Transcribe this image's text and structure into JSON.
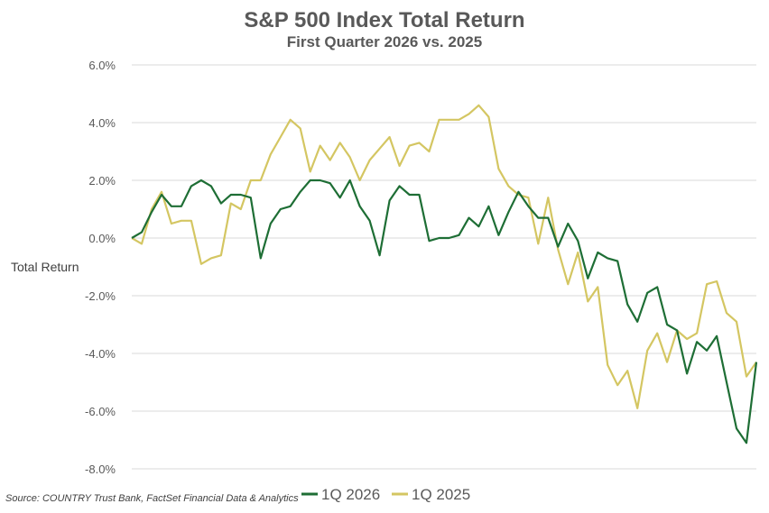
{
  "chart_data": {
    "type": "line",
    "title": "S&P 500 Index Total Return",
    "subtitle": "First Quarter 2026 vs. 2025",
    "ylabel": "Total Return",
    "xlabel": "",
    "ylim": [
      -8,
      6
    ],
    "y_ticks": [
      6,
      4,
      2,
      0,
      -2,
      -4,
      -6,
      -8
    ],
    "y_tick_labels": [
      "6.0%",
      "4.0%",
      "2.0%",
      "0.0%",
      "-2.0%",
      "-4.0%",
      "-6.0%",
      "-8.0%"
    ],
    "grid": true,
    "legend_position": "bottom",
    "series": [
      {
        "name": "1Q 2026",
        "color": "#1e6e35",
        "values": [
          0.0,
          0.2,
          0.9,
          1.5,
          1.1,
          1.1,
          1.8,
          2.0,
          1.8,
          1.2,
          1.5,
          1.5,
          1.4,
          -0.7,
          0.5,
          1.0,
          1.1,
          1.6,
          2.0,
          2.0,
          1.9,
          1.4,
          2.0,
          1.1,
          0.6,
          -0.6,
          1.3,
          1.8,
          1.5,
          1.5,
          -0.1,
          0.0,
          0.0,
          0.1,
          0.7,
          0.4,
          1.1,
          0.1,
          0.9,
          1.6,
          1.1,
          0.7,
          0.7,
          -0.3,
          0.5,
          -0.1,
          -1.4,
          -0.5,
          -0.7,
          -0.8,
          -2.3,
          -2.9,
          -1.9,
          -1.7,
          -3.0,
          -3.2,
          -4.7,
          -3.6,
          -3.9,
          -3.4,
          -5.0,
          -6.6,
          -7.1,
          -4.3
        ]
      },
      {
        "name": "1Q 2025",
        "color": "#d4c662",
        "values": [
          0.0,
          -0.2,
          1.0,
          1.6,
          0.5,
          0.6,
          0.6,
          -0.9,
          -0.7,
          -0.6,
          1.2,
          1.0,
          2.0,
          2.0,
          2.9,
          3.5,
          4.1,
          3.8,
          2.3,
          3.2,
          2.7,
          3.3,
          2.8,
          2.0,
          2.7,
          3.1,
          3.5,
          2.5,
          3.2,
          3.3,
          3.0,
          4.1,
          4.1,
          4.1,
          4.3,
          4.6,
          4.2,
          2.4,
          1.8,
          1.5,
          1.4,
          -0.2,
          1.4,
          -0.4,
          -1.6,
          -0.5,
          -2.2,
          -1.7,
          -4.4,
          -5.1,
          -4.6,
          -5.9,
          -3.9,
          -3.3,
          -4.3,
          -3.2,
          -3.5,
          -3.3,
          -1.6,
          -1.5,
          -2.6,
          -2.9,
          -4.8,
          -4.3
        ]
      }
    ]
  },
  "source": "Source: COUNTRY Trust Bank, FactSet Financial Data & Analytics"
}
